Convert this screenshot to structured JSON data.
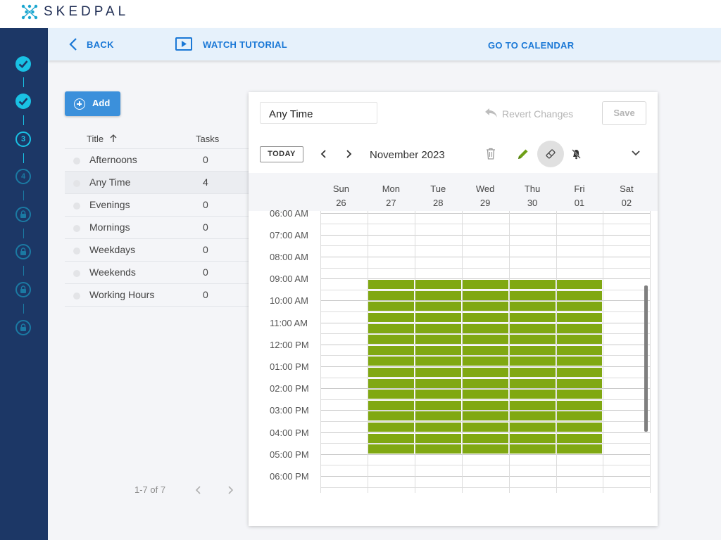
{
  "app": {
    "brand": "SKEDPAL"
  },
  "sidebar": {
    "steps": [
      {
        "state": "done",
        "label": ""
      },
      {
        "state": "done",
        "label": ""
      },
      {
        "state": "current",
        "label": "3"
      },
      {
        "state": "future",
        "label": "4"
      },
      {
        "state": "locked",
        "label": ""
      },
      {
        "state": "locked",
        "label": ""
      },
      {
        "state": "locked",
        "label": ""
      },
      {
        "state": "locked",
        "label": ""
      }
    ]
  },
  "navbar": {
    "back_label": "BACK",
    "tutorial_label": "WATCH TUTORIAL",
    "calendar_label": "GO TO CALENDAR"
  },
  "list": {
    "add_label": "Add",
    "col_title": "Title",
    "col_tasks": "Tasks",
    "rows": [
      {
        "name": "Afternoons",
        "tasks": "0"
      },
      {
        "name": "Any Time",
        "tasks": "4"
      },
      {
        "name": "Evenings",
        "tasks": "0"
      },
      {
        "name": "Mornings",
        "tasks": "0"
      },
      {
        "name": "Weekdays",
        "tasks": "0"
      },
      {
        "name": "Weekends",
        "tasks": "0"
      },
      {
        "name": "Working Hours",
        "tasks": "0"
      }
    ],
    "selected_row": 1,
    "pager_text": "1-7 of 7"
  },
  "editor": {
    "name_value": "Any Time",
    "revert_label": "Revert Changes",
    "save_label": "Save",
    "today_label": "TODAY",
    "month_label": "November 2023",
    "days": [
      {
        "dow": "Sun",
        "date": "26"
      },
      {
        "dow": "Mon",
        "date": "27"
      },
      {
        "dow": "Tue",
        "date": "28"
      },
      {
        "dow": "Wed",
        "date": "29"
      },
      {
        "dow": "Thu",
        "date": "30"
      },
      {
        "dow": "Fri",
        "date": "01"
      },
      {
        "dow": "Sat",
        "date": "02"
      }
    ],
    "time_labels": [
      "06:00 AM",
      "07:00 AM",
      "08:00 AM",
      "09:00 AM",
      "10:00 AM",
      "11:00 AM",
      "12:00 PM",
      "01:00 PM",
      "02:00 PM",
      "03:00 PM",
      "04:00 PM",
      "05:00 PM",
      "06:00 PM"
    ],
    "availability": {
      "days": [
        "Mon",
        "Tue",
        "Wed",
        "Thu",
        "Fri"
      ],
      "start": "09:00 AM",
      "end": "05:00 PM"
    },
    "colors": {
      "block": "#80a812",
      "accent": "#1a78d6",
      "sidebar": "#1c3766",
      "step": "#19c1e4"
    }
  }
}
